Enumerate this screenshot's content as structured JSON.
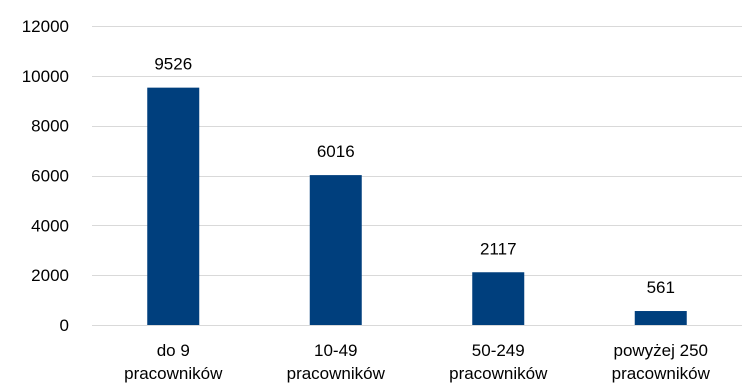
{
  "chart_data": {
    "type": "bar",
    "categories": [
      [
        "do 9",
        "pracowników"
      ],
      [
        "10-49",
        "pracowników"
      ],
      [
        "50-249",
        "pracowników"
      ],
      [
        "powyżej 250",
        "pracowników"
      ]
    ],
    "values": [
      9526,
      6016,
      2117,
      561
    ],
    "yticks": [
      "0",
      "2000",
      "4000",
      "6000",
      "8000",
      "10000",
      "12000"
    ],
    "ylim": [
      0,
      12000
    ],
    "grid": true,
    "bar_color": "#003f7d",
    "grid_color": "#d9d9d9",
    "title": "",
    "xlabel": "",
    "ylabel": ""
  }
}
